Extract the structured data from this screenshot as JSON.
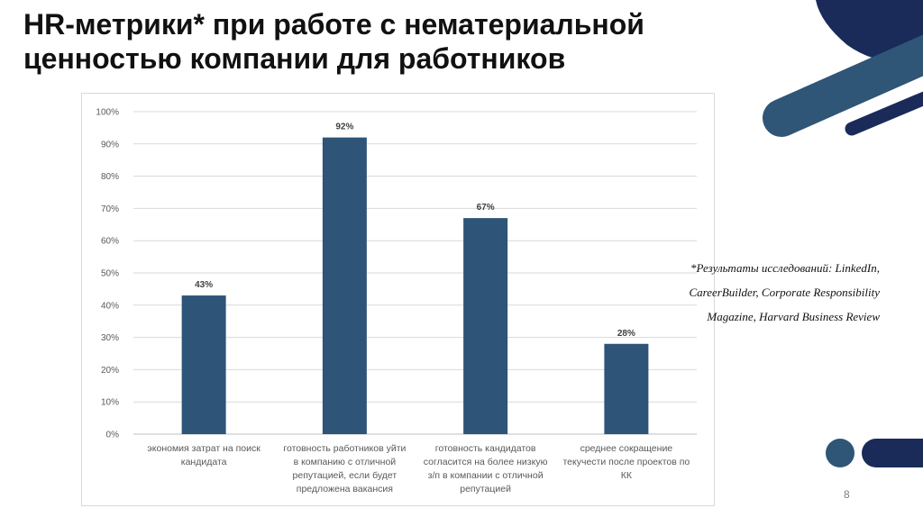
{
  "slide": {
    "title_lines": [
      "HR-метрики* при работе с нематериальной",
      "ценностью компании для работников"
    ],
    "note_lines": [
      "*Результаты исследований: LinkedIn,",
      "CareerBuilder, Corporate Responsibility",
      "Magazine, Harvard Business Review"
    ],
    "page_number": "8"
  },
  "colors": {
    "bar": "#2e5478",
    "dark_navy": "#1a2b59",
    "mid_blue": "#2f5577",
    "grid": "#d9d9d9"
  },
  "chart_data": {
    "type": "bar",
    "categories": [
      [
        "экономия затрат на поиск",
        "кандидата"
      ],
      [
        "готовность работников уйти",
        "в компанию с отличной",
        "репутацией, если будет",
        "предложена вакансия"
      ],
      [
        "готовность кандидатов",
        "согласится на более низкую",
        "з/п в компании с отличной",
        "репутацией"
      ],
      [
        "среднее сокращение",
        "текучести после проектов по",
        "КК"
      ]
    ],
    "values": [
      43,
      92,
      67,
      28
    ],
    "value_labels": [
      "43%",
      "92%",
      "67%",
      "28%"
    ],
    "ylim": [
      0,
      100
    ],
    "yticks": [
      0,
      10,
      20,
      30,
      40,
      50,
      60,
      70,
      80,
      90,
      100
    ],
    "ytick_labels": [
      "0%",
      "10%",
      "20%",
      "30%",
      "40%",
      "50%",
      "60%",
      "70%",
      "80%",
      "90%",
      "100%"
    ],
    "grid": true,
    "title": "",
    "xlabel": "",
    "ylabel": ""
  }
}
